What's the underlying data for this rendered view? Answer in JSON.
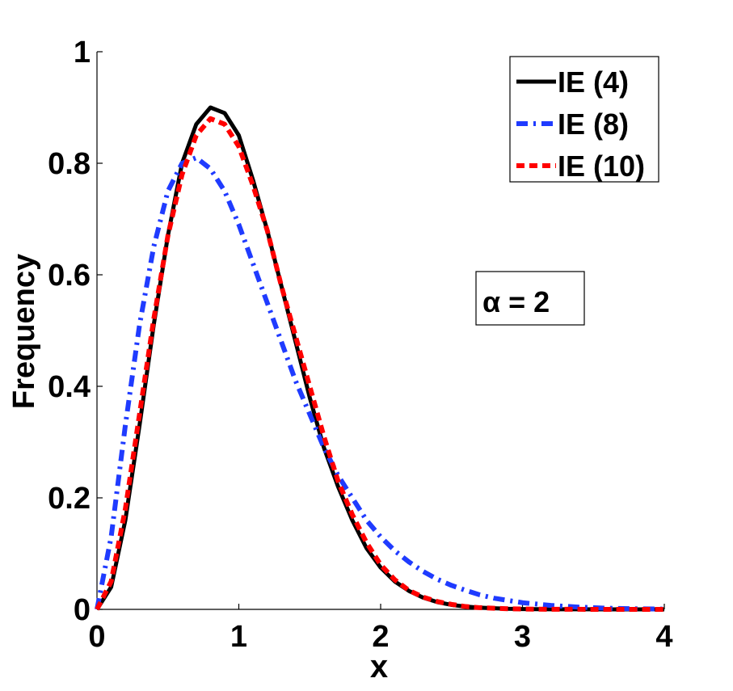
{
  "chart_data": {
    "type": "line",
    "title": "",
    "xlabel": "x",
    "ylabel": "Frequency",
    "xlim": [
      0,
      4
    ],
    "ylim": [
      0,
      1
    ],
    "xticks": [
      0,
      1,
      2,
      3,
      4
    ],
    "yticks": [
      0,
      0.2,
      0.4,
      0.6,
      0.8,
      1
    ],
    "xtick_labels": [
      "0",
      "1",
      "2",
      "3",
      "4"
    ],
    "ytick_labels": [
      "0",
      "0.2",
      "0.4",
      "0.6",
      "0.8",
      "1"
    ],
    "grid": false,
    "legend_position": "top-right",
    "annotation": "α = 2",
    "x": [
      0,
      0.1,
      0.2,
      0.3,
      0.4,
      0.5,
      0.6,
      0.7,
      0.8,
      0.9,
      1.0,
      1.1,
      1.2,
      1.3,
      1.4,
      1.5,
      1.6,
      1.7,
      1.8,
      1.9,
      2.0,
      2.1,
      2.2,
      2.3,
      2.4,
      2.5,
      2.6,
      2.7,
      2.8,
      2.9,
      3.0,
      3.2,
      3.4,
      3.6,
      3.8,
      4.0
    ],
    "series": [
      {
        "name": "IE (4)",
        "color": "#000000",
        "style": "solid",
        "values": [
          0,
          0.04,
          0.16,
          0.33,
          0.51,
          0.67,
          0.8,
          0.87,
          0.9,
          0.89,
          0.85,
          0.77,
          0.68,
          0.58,
          0.48,
          0.38,
          0.29,
          0.22,
          0.16,
          0.11,
          0.075,
          0.05,
          0.033,
          0.021,
          0.013,
          0.008,
          0.005,
          0.003,
          0.002,
          0.001,
          0.0006,
          0.0002,
          0.0001,
          0,
          0,
          0
        ]
      },
      {
        "name": "IE (8)",
        "color": "#1f3bff",
        "style": "dashdot",
        "values": [
          0,
          0.13,
          0.33,
          0.51,
          0.65,
          0.75,
          0.8,
          0.81,
          0.79,
          0.75,
          0.69,
          0.62,
          0.55,
          0.48,
          0.41,
          0.35,
          0.29,
          0.24,
          0.2,
          0.16,
          0.13,
          0.105,
          0.085,
          0.068,
          0.054,
          0.043,
          0.034,
          0.026,
          0.02,
          0.016,
          0.012,
          0.007,
          0.004,
          0.002,
          0.001,
          0.0005
        ]
      },
      {
        "name": "IE (10)",
        "color": "#ff0000",
        "style": "dashed",
        "values": [
          0,
          0.05,
          0.18,
          0.35,
          0.52,
          0.67,
          0.78,
          0.85,
          0.88,
          0.87,
          0.83,
          0.76,
          0.68,
          0.58,
          0.49,
          0.4,
          0.31,
          0.23,
          0.17,
          0.12,
          0.08,
          0.053,
          0.034,
          0.022,
          0.014,
          0.009,
          0.005,
          0.003,
          0.002,
          0.001,
          0.0006,
          0.0002,
          0.0001,
          0,
          0,
          0
        ]
      }
    ]
  }
}
